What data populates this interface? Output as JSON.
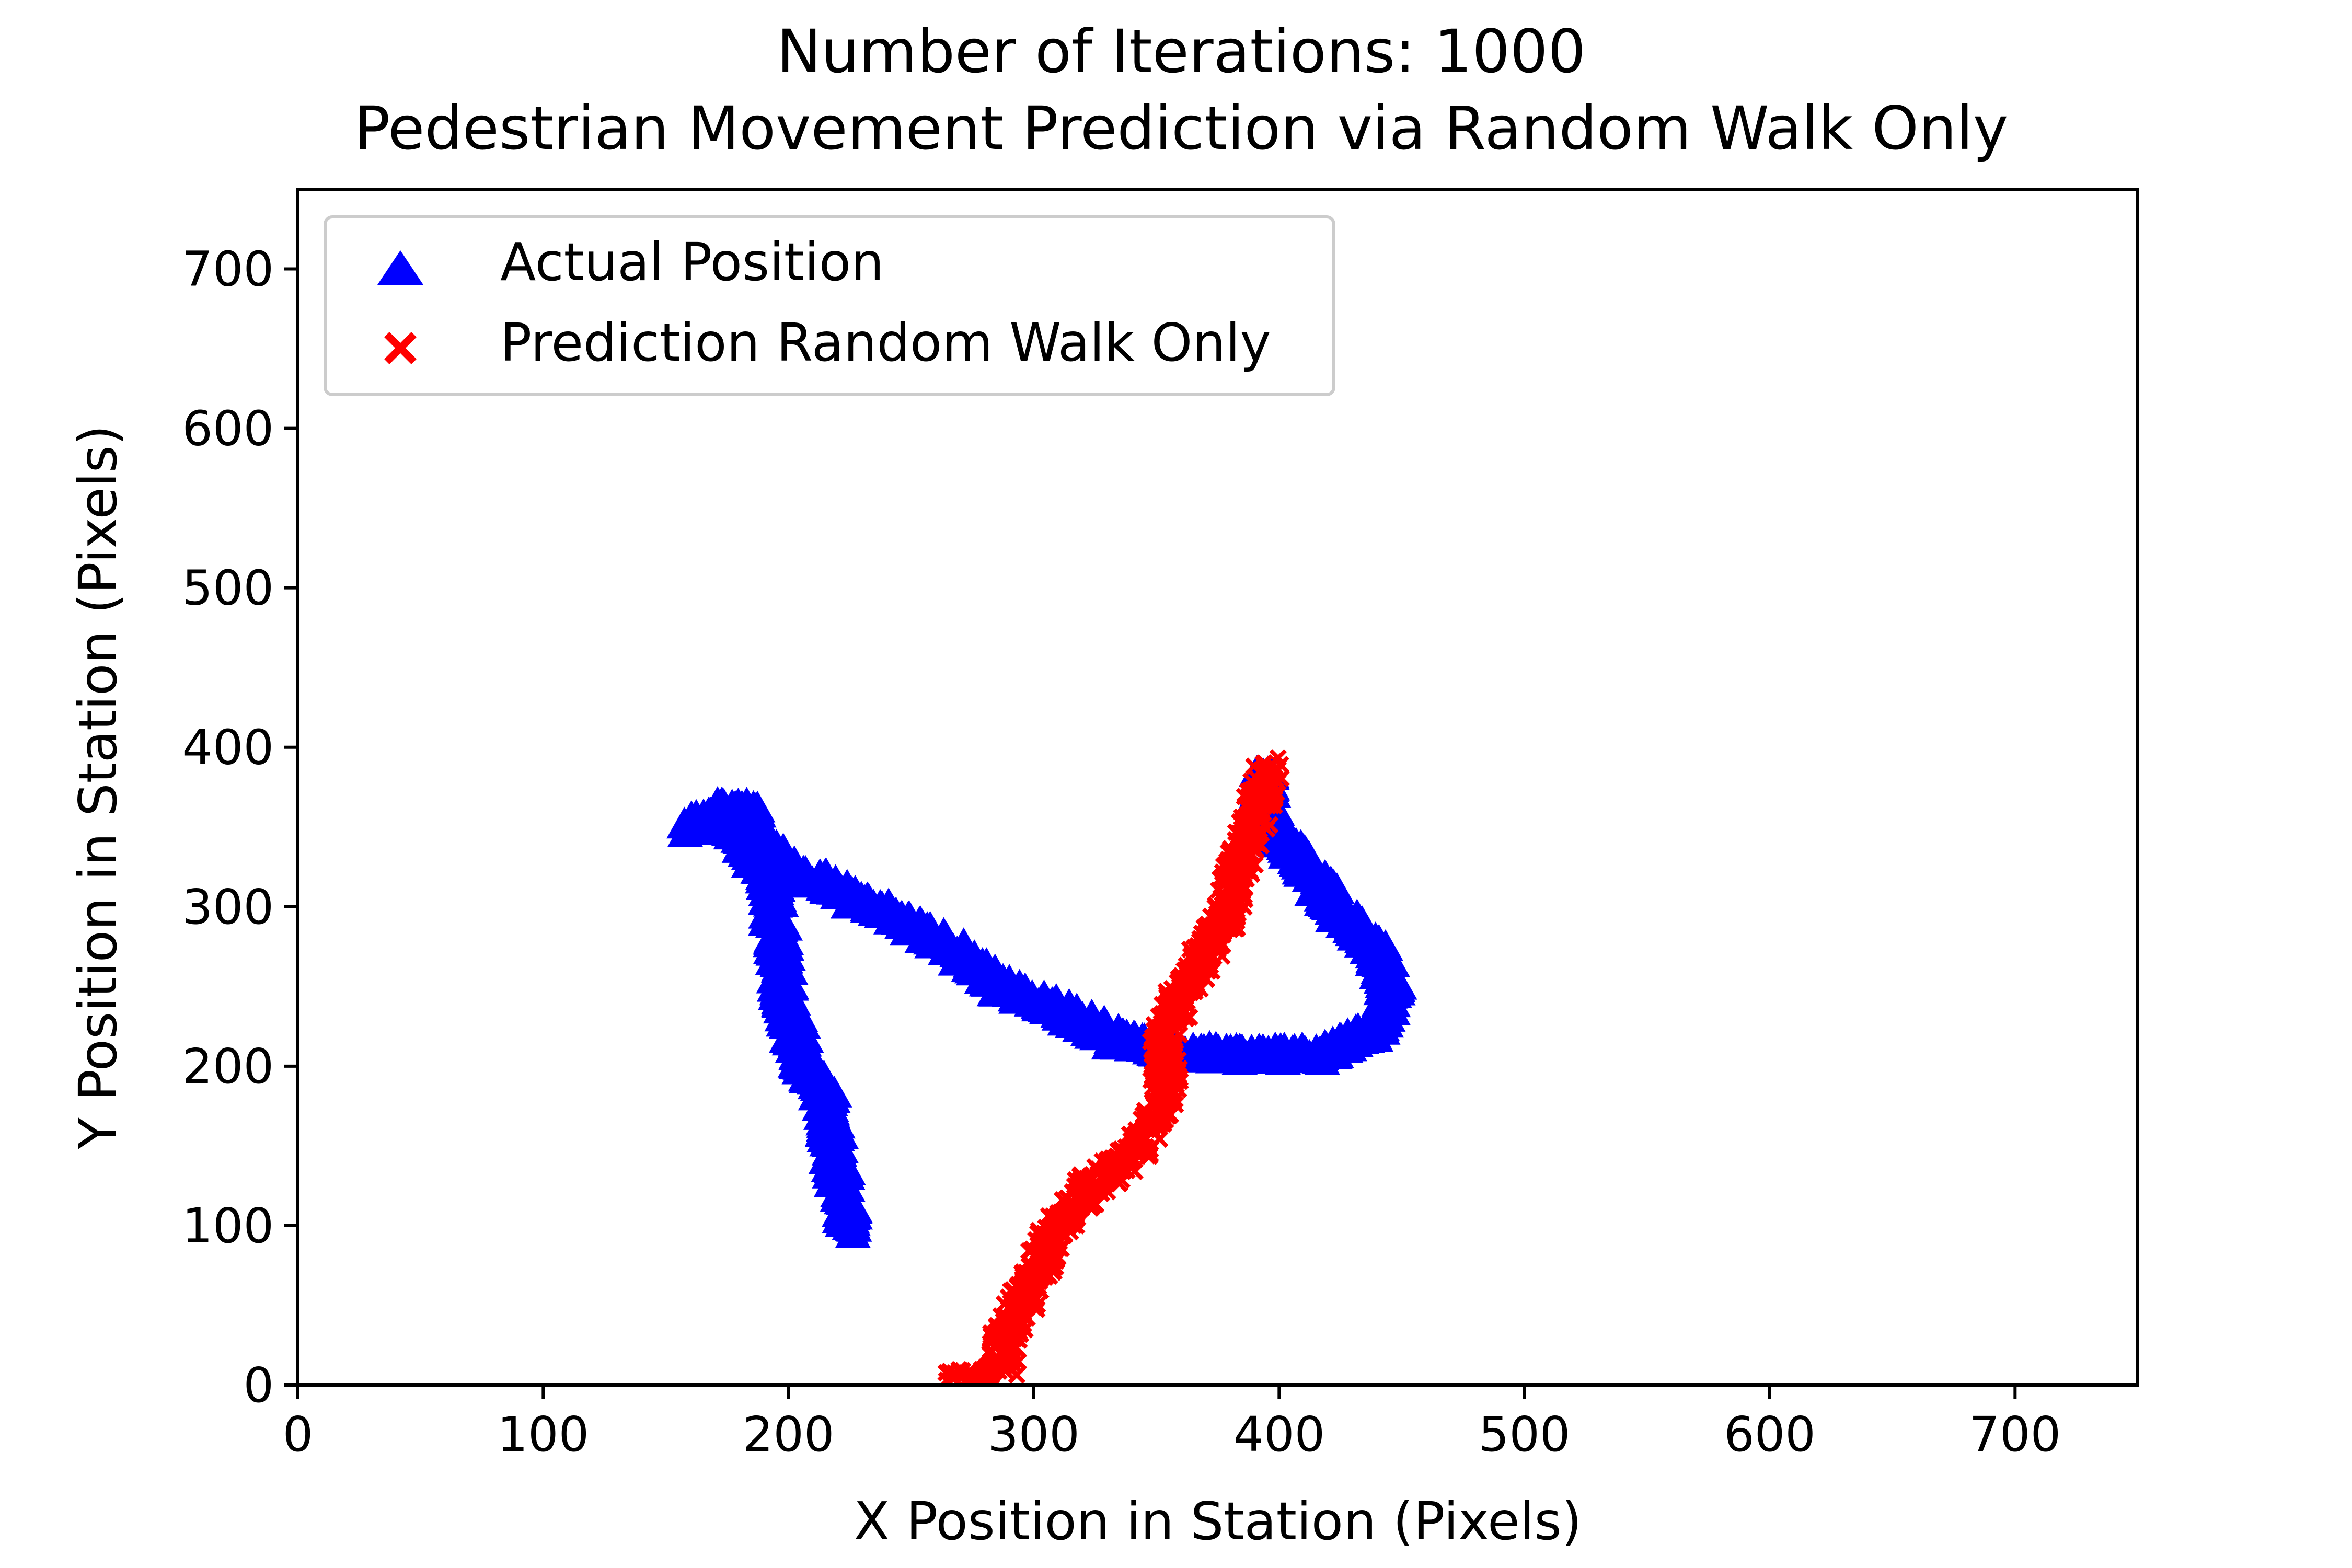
{
  "chart_data": {
    "type": "scatter",
    "title_lines": [
      "Number of Iterations: 1000",
      "Pedestrian Movement Prediction via Random Walk Only"
    ],
    "xlabel": "X Position in Station (Pixels)",
    "ylabel": "Y Position in Station (Pixels)",
    "xlim": [
      0,
      750
    ],
    "ylim": [
      0,
      750
    ],
    "xticks": [
      0,
      100,
      200,
      300,
      400,
      500,
      600,
      700
    ],
    "yticks": [
      0,
      100,
      200,
      300,
      400,
      500,
      600,
      700
    ],
    "xtick_labels": [
      "0",
      "100",
      "200",
      "300",
      "400",
      "500",
      "600",
      "700"
    ],
    "ytick_labels": [
      "0",
      "100",
      "200",
      "300",
      "400",
      "500",
      "600",
      "700"
    ],
    "grid": false,
    "legend_position": "upper-left",
    "legend": [
      "Actual Position",
      "Prediction Random Walk Only"
    ],
    "series": [
      {
        "name": "Actual Position",
        "marker": "triangle-up",
        "color": "#0000ff",
        "path": [
          [
            225,
            95
          ],
          [
            222,
            120
          ],
          [
            218,
            150
          ],
          [
            215,
            180
          ],
          [
            205,
            205
          ],
          [
            200,
            235
          ],
          [
            196,
            268
          ],
          [
            194,
            300
          ],
          [
            192,
            320
          ],
          [
            183,
            335
          ],
          [
            178,
            345
          ],
          [
            170,
            352
          ],
          [
            158,
            348
          ],
          [
            175,
            360
          ],
          [
            185,
            360
          ],
          [
            187,
            345
          ],
          [
            198,
            325
          ],
          [
            210,
            316
          ],
          [
            230,
            302
          ],
          [
            250,
            288
          ],
          [
            262,
            278
          ],
          [
            275,
            262
          ],
          [
            288,
            248
          ],
          [
            305,
            237
          ],
          [
            320,
            228
          ],
          [
            334,
            215
          ],
          [
            345,
            212
          ],
          [
            360,
            208
          ],
          [
            380,
            206
          ],
          [
            400,
            206
          ],
          [
            418,
            206
          ],
          [
            425,
            212
          ],
          [
            435,
            218
          ],
          [
            443,
            232
          ],
          [
            446,
            250
          ],
          [
            440,
            270
          ],
          [
            432,
            285
          ],
          [
            425,
            295
          ],
          [
            418,
            310
          ],
          [
            410,
            325
          ],
          [
            402,
            340
          ],
          [
            396,
            355
          ],
          [
            394,
            372
          ],
          [
            395,
            385
          ]
        ]
      },
      {
        "name": "Prediction Random Walk Only",
        "marker": "x",
        "color": "#ff0000",
        "path": [
          [
            267,
            8
          ],
          [
            280,
            3
          ],
          [
            288,
            10
          ],
          [
            287,
            22
          ],
          [
            290,
            38
          ],
          [
            296,
            55
          ],
          [
            302,
            72
          ],
          [
            306,
            90
          ],
          [
            315,
            108
          ],
          [
            322,
            125
          ],
          [
            335,
            138
          ],
          [
            342,
            150
          ],
          [
            348,
            162
          ],
          [
            352,
            178
          ],
          [
            355,
            195
          ],
          [
            352,
            210
          ],
          [
            356,
            228
          ],
          [
            360,
            245
          ],
          [
            366,
            260
          ],
          [
            372,
            278
          ],
          [
            378,
            292
          ],
          [
            380,
            305
          ],
          [
            382,
            320
          ],
          [
            386,
            335
          ],
          [
            390,
            352
          ],
          [
            392,
            366
          ],
          [
            394,
            378
          ],
          [
            396,
            388
          ]
        ]
      }
    ]
  }
}
